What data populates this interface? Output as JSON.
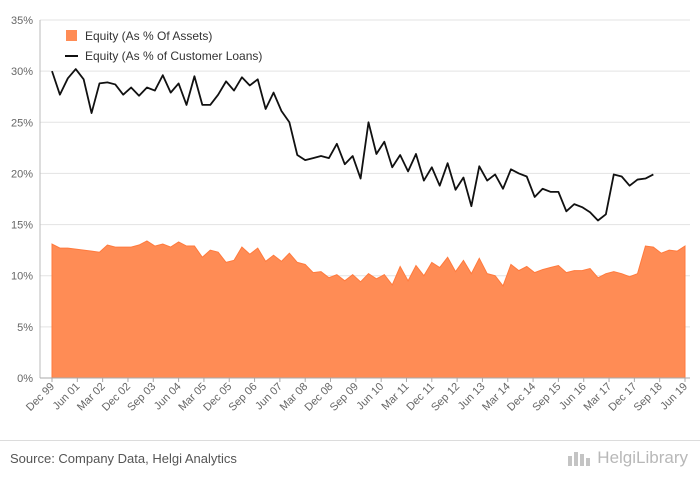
{
  "chart_data": {
    "type": "area+line",
    "title": "",
    "xlabel": "",
    "ylabel": "",
    "ylim": [
      0,
      35
    ],
    "yticks": [
      "0%",
      "5%",
      "10%",
      "15%",
      "20%",
      "25%",
      "30%",
      "35%"
    ],
    "legend_position": "top-left",
    "grid": true,
    "tick_labels": [
      "Dec 99",
      "Jun 01",
      "Mar 02",
      "Dec 02",
      "Sep 03",
      "Jun 04",
      "Mar 05",
      "Dec 05",
      "Sep 06",
      "Jun 07",
      "Mar 08",
      "Dec 08",
      "Sep 09",
      "Jun 10",
      "Mar 11",
      "Dec 11",
      "Sep 12",
      "Jun 13",
      "Mar 14",
      "Dec 14",
      "Sep 15",
      "Jun 16",
      "Mar 17",
      "Dec 17",
      "Sep 18",
      "Jun 19"
    ],
    "series": [
      {
        "name": "Equity (As % Of Assets)",
        "type": "area",
        "color": "#ff8c55",
        "values": [
          13.1,
          12.7,
          12.7,
          12.6,
          12.5,
          12.4,
          12.3,
          13.0,
          12.8,
          12.8,
          12.8,
          13.0,
          13.4,
          12.9,
          13.1,
          12.8,
          13.3,
          12.9,
          12.9,
          11.8,
          12.5,
          12.3,
          11.3,
          11.5,
          12.8,
          12.1,
          12.7,
          11.4,
          12.0,
          11.4,
          12.2,
          11.3,
          11.1,
          10.3,
          10.4,
          9.8,
          10.1,
          9.5,
          10.1,
          9.4,
          10.2,
          9.7,
          10.1,
          9.1,
          10.9,
          9.5,
          11.0,
          10.0,
          11.3,
          10.8,
          11.8,
          10.4,
          11.5,
          10.2,
          11.7,
          10.2,
          10.0,
          9.0,
          11.1,
          10.5,
          10.9,
          10.3,
          10.6,
          10.8,
          11.0,
          10.3,
          10.5,
          10.5,
          10.7,
          9.8,
          10.2,
          10.4,
          10.2,
          9.9,
          10.2,
          12.9,
          12.8,
          12.2,
          12.5,
          12.4,
          12.9
        ]
      },
      {
        "name": "Equity (As % of Customer Loans)",
        "type": "line",
        "color": "#111111",
        "values": [
          30.0,
          27.7,
          29.3,
          30.2,
          29.2,
          25.9,
          28.8,
          28.9,
          28.7,
          27.7,
          28.4,
          27.6,
          28.4,
          28.1,
          29.6,
          27.9,
          28.8,
          26.7,
          29.5,
          26.7,
          26.7,
          27.7,
          29.0,
          28.1,
          29.4,
          28.6,
          29.2,
          26.3,
          27.9,
          26.1,
          25.0,
          21.8,
          21.3,
          21.5,
          21.7,
          21.5,
          22.9,
          20.9,
          21.7,
          19.5,
          25.0,
          21.9,
          23.1,
          20.6,
          21.8,
          20.2,
          21.9,
          19.3,
          20.6,
          18.8,
          21.0,
          18.4,
          19.6,
          16.8,
          20.7,
          19.3,
          19.9,
          18.5,
          20.4,
          20.0,
          19.7,
          17.7,
          18.5,
          18.2,
          18.2,
          16.3,
          17.0,
          16.7,
          16.2,
          15.4,
          16.0,
          19.9,
          19.7,
          18.8,
          19.4,
          19.5,
          19.9
        ]
      }
    ]
  },
  "footer": {
    "source": "Source: Company Data, Helgi Analytics",
    "brand": "HelgiLibrary"
  }
}
